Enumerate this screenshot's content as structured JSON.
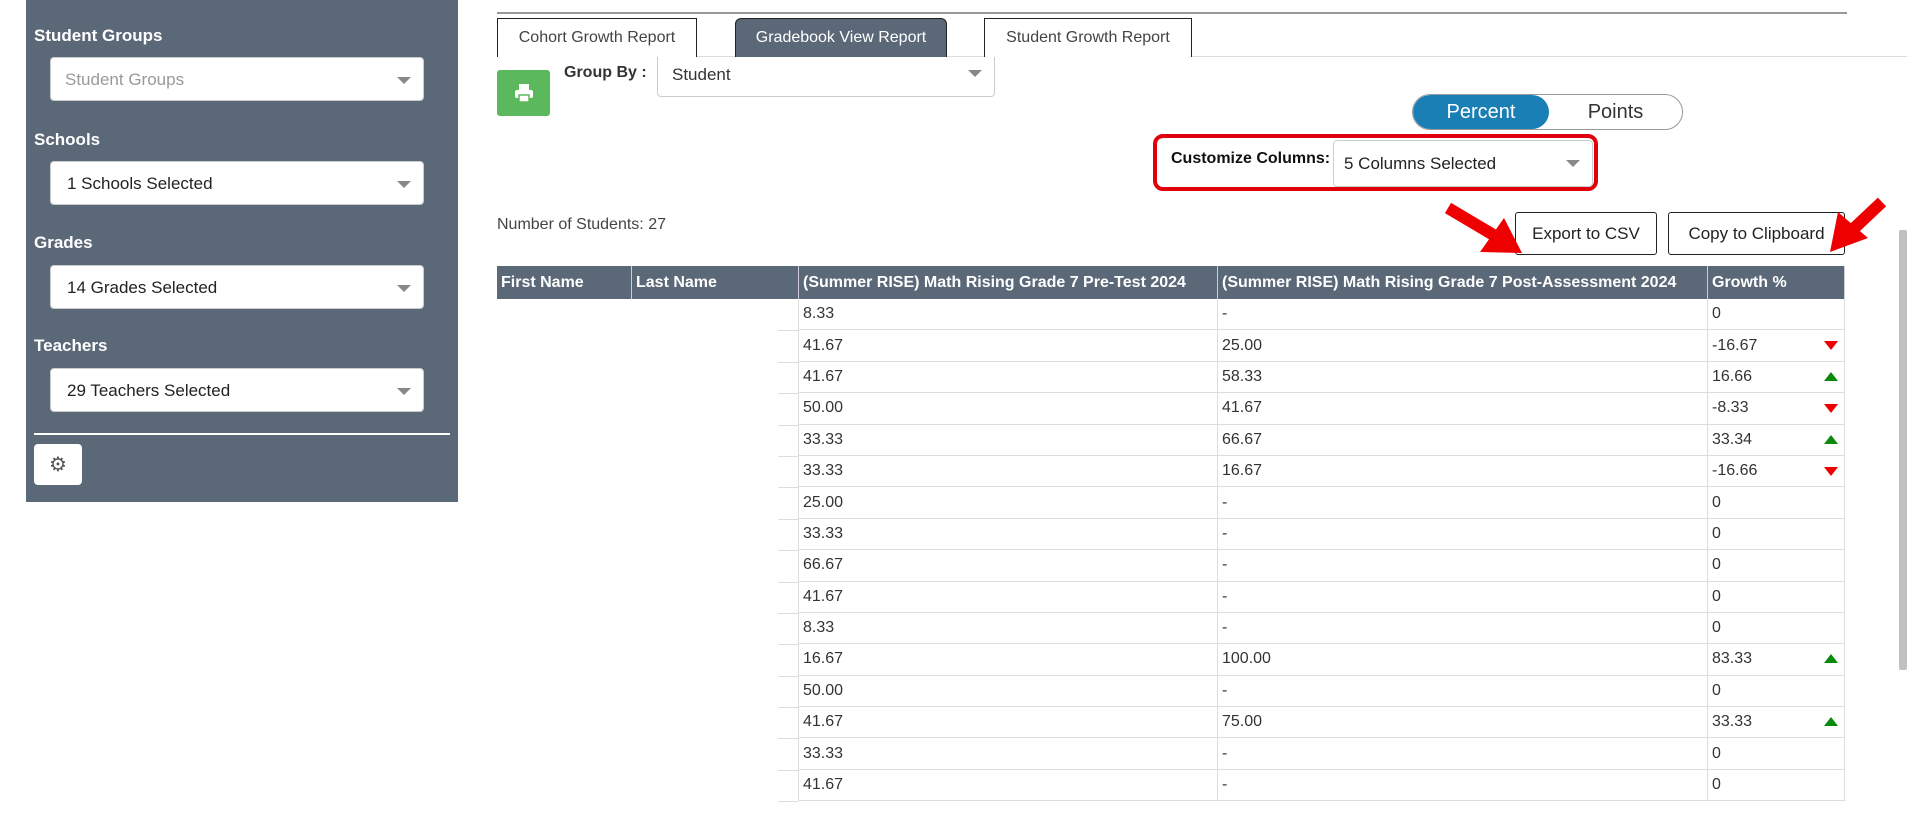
{
  "sidebar": {
    "student_groups": {
      "label": "Student Groups",
      "placeholder": "Student Groups"
    },
    "schools": {
      "label": "Schools",
      "value": "1 Schools Selected"
    },
    "grades": {
      "label": "Grades",
      "value": "14 Grades Selected"
    },
    "teachers": {
      "label": "Teachers",
      "value": "29 Teachers Selected"
    },
    "settings_icon": "gear-icon"
  },
  "tabs": [
    {
      "label": "Cohort Growth Report",
      "active": false
    },
    {
      "label": "Gradebook View Report",
      "active": true
    },
    {
      "label": "Student Growth Report",
      "active": false
    }
  ],
  "toolbar": {
    "print_icon": "printer-icon",
    "group_by_label": "Group By :",
    "group_by_value": "Student",
    "toggle": {
      "percent": "Percent",
      "points": "Points",
      "selected": "Percent"
    },
    "customize_label": "Customize Columns:",
    "customize_value": "5 Columns Selected",
    "num_students": "Number of Students: 27",
    "export_csv": "Export to CSV",
    "copy_clipboard": "Copy to Clipboard"
  },
  "colors": {
    "accent": "#1a7fb5",
    "sidebar": "#5b6878",
    "print": "#5cb85c",
    "highlight": "#e0000b",
    "up": "#0a8a0a",
    "down": "#ee0000"
  },
  "table": {
    "headers": [
      "First Name",
      "Last Name",
      "(Summer RISE) Math Rising Grade 7 Pre-Test 2024",
      "(Summer RISE) Math Rising Grade 7 Post-Assessment 2024",
      "Growth %"
    ],
    "rows": [
      {
        "pre": "8.33",
        "post": "-",
        "growth": "0",
        "trend": ""
      },
      {
        "pre": "41.67",
        "post": "25.00",
        "growth": "-16.67",
        "trend": "down"
      },
      {
        "pre": "41.67",
        "post": "58.33",
        "growth": "16.66",
        "trend": "up"
      },
      {
        "pre": "50.00",
        "post": "41.67",
        "growth": "-8.33",
        "trend": "down"
      },
      {
        "pre": "33.33",
        "post": "66.67",
        "growth": "33.34",
        "trend": "up"
      },
      {
        "pre": "33.33",
        "post": "16.67",
        "growth": "-16.66",
        "trend": "down"
      },
      {
        "pre": "25.00",
        "post": "-",
        "growth": "0",
        "trend": ""
      },
      {
        "pre": "33.33",
        "post": "-",
        "growth": "0",
        "trend": ""
      },
      {
        "pre": "66.67",
        "post": "-",
        "growth": "0",
        "trend": ""
      },
      {
        "pre": "41.67",
        "post": "-",
        "growth": "0",
        "trend": ""
      },
      {
        "pre": "8.33",
        "post": "-",
        "growth": "0",
        "trend": ""
      },
      {
        "pre": "16.67",
        "post": "100.00",
        "growth": "83.33",
        "trend": "up"
      },
      {
        "pre": "50.00",
        "post": "-",
        "growth": "0",
        "trend": ""
      },
      {
        "pre": "41.67",
        "post": "75.00",
        "growth": "33.33",
        "trend": "up"
      },
      {
        "pre": "33.33",
        "post": "-",
        "growth": "0",
        "trend": ""
      },
      {
        "pre": "41.67",
        "post": "-",
        "growth": "0",
        "trend": ""
      }
    ]
  }
}
